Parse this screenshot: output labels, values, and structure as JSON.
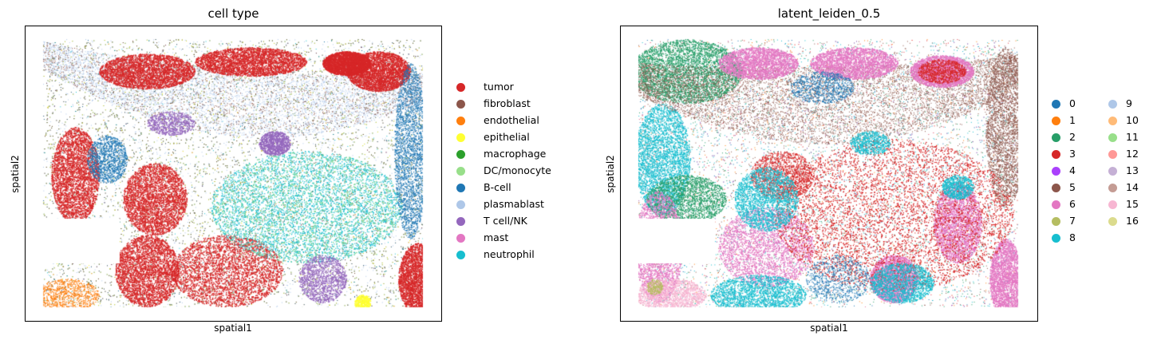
{
  "chart_data": [
    {
      "type": "scatter",
      "title": "cell type",
      "xlabel": "spatial1",
      "ylabel": "spatial2",
      "grid": false,
      "ticks_shown": false,
      "legend_placement": "right",
      "categories": [
        {
          "name": "tumor",
          "color": "#d62728"
        },
        {
          "name": "fibroblast",
          "color": "#8c564b"
        },
        {
          "name": "endothelial",
          "color": "#ff7f0e"
        },
        {
          "name": "epithelial",
          "color": "#ffff33"
        },
        {
          "name": "macrophage",
          "color": "#2ca02c"
        },
        {
          "name": "DC/monocyte",
          "color": "#98df8a"
        },
        {
          "name": "B-cell",
          "color": "#1f77b4"
        },
        {
          "name": "plasmablast",
          "color": "#aec7e8"
        },
        {
          "name": "T cell/NK",
          "color": "#9467bd"
        },
        {
          "name": "mast",
          "color": "#e377c2"
        },
        {
          "name": "neutrophil",
          "color": "#17becf"
        }
      ]
    },
    {
      "type": "scatter",
      "title": "latent_leiden_0.5",
      "xlabel": "spatial1",
      "ylabel": "spatial2",
      "grid": false,
      "ticks_shown": false,
      "legend_placement": "right",
      "legend_columns": 2,
      "categories": [
        {
          "name": "0",
          "color": "#1f77b4"
        },
        {
          "name": "1",
          "color": "#ff7f0e"
        },
        {
          "name": "2",
          "color": "#279e68"
        },
        {
          "name": "3",
          "color": "#d62728"
        },
        {
          "name": "4",
          "color": "#aa40fc"
        },
        {
          "name": "5",
          "color": "#8c564b"
        },
        {
          "name": "6",
          "color": "#e377c2"
        },
        {
          "name": "7",
          "color": "#b5bd61"
        },
        {
          "name": "8",
          "color": "#17becf"
        },
        {
          "name": "9",
          "color": "#aec7e8"
        },
        {
          "name": "10",
          "color": "#ffbb78"
        },
        {
          "name": "11",
          "color": "#98df8a"
        },
        {
          "name": "12",
          "color": "#ff9896"
        },
        {
          "name": "13",
          "color": "#c5b0d5"
        },
        {
          "name": "14",
          "color": "#c49c94"
        },
        {
          "name": "15",
          "color": "#f7b6d2"
        },
        {
          "name": "16",
          "color": "#dbdb8d"
        }
      ]
    }
  ]
}
